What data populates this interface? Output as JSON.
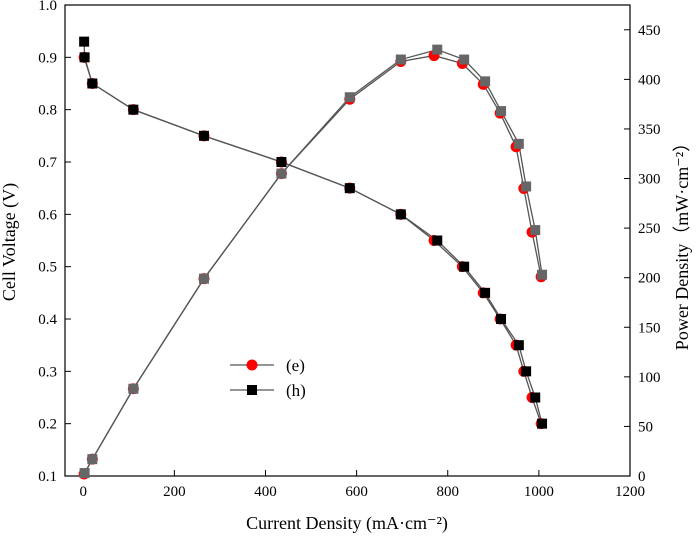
{
  "chart_data": {
    "type": "line",
    "xlabel": "Current Density (mA·cm⁻²)",
    "ylabel_left": "Cell Voltage (V)",
    "ylabel_right": "Power Density（mW·cm⁻²）",
    "xlim": [
      -40,
      1200
    ],
    "ylim_left": [
      0.1,
      1.0
    ],
    "ylim_right": [
      0,
      475
    ],
    "xticks": [
      "0",
      "200",
      "400",
      "600",
      "800",
      "1000",
      "1200"
    ],
    "yticks_left": [
      "0.1",
      "0.2",
      "0.3",
      "0.4",
      "0.5",
      "0.6",
      "0.7",
      "0.8",
      "0.9",
      "1.0"
    ],
    "yticks_right": [
      "0",
      "50",
      "100",
      "150",
      "200",
      "250",
      "300",
      "350",
      "400",
      "450"
    ],
    "legend": {
      "position": "center-left",
      "entries": [
        {
          "label": "(e)",
          "marker": "circle",
          "color": "#ff0000"
        },
        {
          "label": "(h)",
          "marker": "square",
          "color": "#000000"
        }
      ]
    },
    "colors": {
      "red_marker": "#ff0000",
      "black_marker": "#000000",
      "grey_marker": "#666666",
      "line": "#555555"
    },
    "series": [
      {
        "name": "(e)",
        "axis": "left",
        "marker": "circle",
        "color": "#ff0000",
        "x": [
          2,
          20,
          110,
          265,
          435,
          585,
          697,
          770,
          832,
          878,
          915,
          950,
          967,
          985,
          1005
        ],
        "y": [
          0.9,
          0.85,
          0.8,
          0.75,
          0.7,
          0.65,
          0.6,
          0.55,
          0.5,
          0.45,
          0.4,
          0.35,
          0.3,
          0.25,
          0.2
        ]
      },
      {
        "name": "(h)",
        "axis": "left",
        "marker": "square",
        "color": "#000000",
        "x": [
          2,
          3,
          20,
          110,
          265,
          435,
          585,
          697,
          777,
          836,
          882,
          917,
          956,
          972,
          992,
          1007
        ],
        "y": [
          0.93,
          0.9,
          0.85,
          0.8,
          0.75,
          0.7,
          0.65,
          0.6,
          0.55,
          0.5,
          0.45,
          0.4,
          0.35,
          0.3,
          0.25,
          0.2
        ]
      },
      {
        "name": "(e)",
        "axis": "right",
        "marker": "circle",
        "color": "#ff0000",
        "x": [
          2,
          20,
          110,
          265,
          435,
          585,
          697,
          770,
          832,
          878,
          915,
          950,
          967,
          985,
          1005
        ],
        "y": [
          2,
          17,
          88,
          199,
          305,
          380,
          418,
          424,
          416,
          395,
          366,
          332,
          290,
          246,
          201
        ]
      },
      {
        "name": "(h)",
        "axis": "right",
        "marker": "square",
        "color": "#666666",
        "x": [
          3,
          20,
          110,
          265,
          435,
          585,
          697,
          777,
          836,
          882,
          917,
          956,
          972,
          992,
          1007
        ],
        "y": [
          3,
          17,
          88,
          199,
          305,
          382,
          420,
          430,
          420,
          398,
          368,
          335,
          292,
          248,
          203
        ]
      }
    ]
  }
}
